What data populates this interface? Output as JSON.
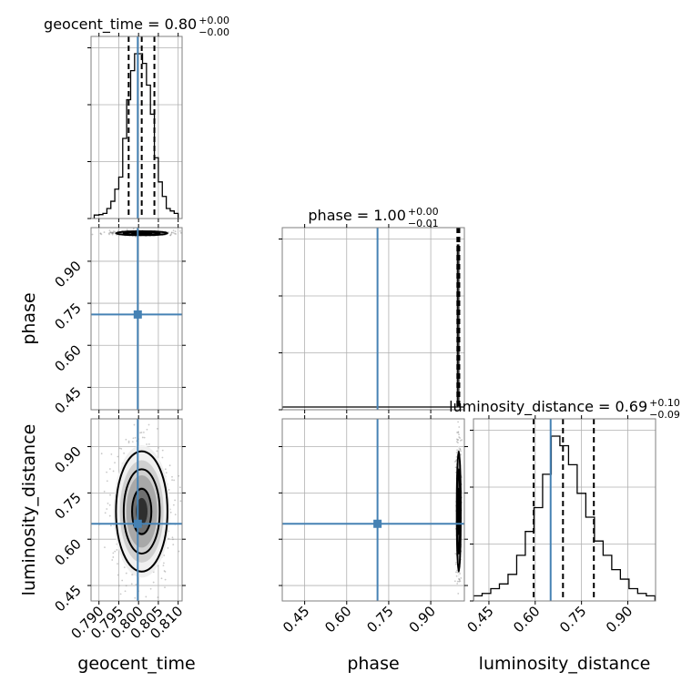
{
  "chart_data": {
    "type": "corner",
    "parameters": [
      "geocent_time",
      "phase",
      "luminosity_distance"
    ],
    "truths": {
      "geocent_time": 0.7998,
      "phase": 0.71,
      "luminosity_distance": 0.65
    },
    "titles": {
      "geocent_time": {
        "prefix": "geocent_time = 0.80",
        "sup": "+0.00",
        "sub": "−0.00"
      },
      "phase": {
        "prefix": "phase = 1.00",
        "sup": "+0.00",
        "sub": "−0.01"
      },
      "luminosity_distance": {
        "prefix": "luminosity_distance = 0.69",
        "sup": "+0.10",
        "sub": "−0.09"
      }
    },
    "axes": {
      "geocent_time": {
        "range": [
          0.788,
          0.811
        ],
        "ticks": [
          0.79,
          0.795,
          0.8,
          0.805,
          0.81
        ],
        "ticklabels": [
          "0.790",
          "0.795",
          "0.800",
          "0.805",
          "0.810"
        ]
      },
      "phase": {
        "range": [
          0.37,
          1.02
        ],
        "ticks": [
          0.45,
          0.6,
          0.75,
          0.9
        ],
        "ticklabels": [
          "0.45",
          "0.60",
          "0.75",
          "0.90"
        ]
      },
      "luminosity_distance": {
        "range": [
          0.4,
          0.99
        ],
        "ticks": [
          0.45,
          0.6,
          0.75,
          0.9
        ],
        "ticklabels": [
          "0.45",
          "0.60",
          "0.75",
          "0.90"
        ]
      }
    },
    "axis_labels": {
      "geocent_time": "geocent_time",
      "phase": "phase",
      "luminosity_distance": "luminosity_distance"
    },
    "marginals": {
      "geocent_time": {
        "bin_edges": [
          0.7888,
          0.79,
          0.791,
          0.792,
          0.793,
          0.794,
          0.795,
          0.796,
          0.797,
          0.798,
          0.799,
          0.8,
          0.801,
          0.802,
          0.803,
          0.804,
          0.805,
          0.806,
          0.807,
          0.808,
          0.809,
          0.81
        ],
        "counts": [
          0.3,
          0.5,
          1,
          3,
          6,
          11,
          16,
          32,
          48,
          60,
          67,
          67,
          63,
          54,
          42,
          24,
          14,
          8,
          3,
          2,
          1
        ],
        "quantiles": [
          0.7975,
          0.8008,
          0.804
        ]
      },
      "phase": {
        "bin_edges": [
          0.37,
          0.995,
          1.0,
          1.02
        ],
        "counts": [
          0,
          100,
          0
        ],
        "quantiles": [
          0.995,
          1.0,
          1.002
        ]
      },
      "luminosity_distance": {
        "bin_edges": [
          0.4,
          0.428,
          0.456,
          0.484,
          0.512,
          0.54,
          0.568,
          0.596,
          0.624,
          0.652,
          0.68,
          0.708,
          0.736,
          0.764,
          0.792,
          0.82,
          0.848,
          0.876,
          0.904,
          0.932,
          0.96,
          0.988
        ],
        "counts": [
          0.5,
          1,
          2,
          3,
          5,
          9,
          14,
          19,
          26,
          34,
          32,
          28,
          22,
          17,
          12,
          9,
          6,
          4,
          2,
          1,
          0.5
        ],
        "quantiles": [
          0.595,
          0.69,
          0.79
        ]
      }
    },
    "quantile_style": "dashed",
    "truth_color": "#4682b4",
    "grid": true
  }
}
